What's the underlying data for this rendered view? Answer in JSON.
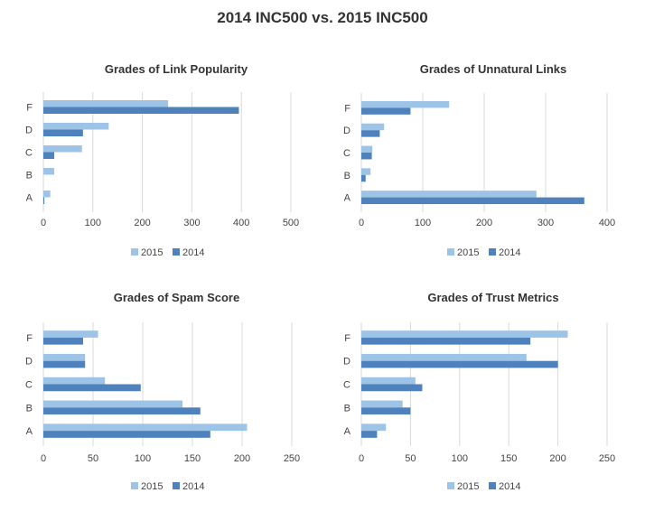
{
  "page": {
    "title": "2014 INC500 vs. 2015 INC500"
  },
  "colors": {
    "s2015": "#9DC3E6",
    "s2014": "#4F81BD",
    "grid": "#D9D9D9",
    "text": "#444444"
  },
  "chart_data": [
    {
      "type": "bar",
      "orientation": "horizontal",
      "title": "Grades of Link Popularity",
      "categories": [
        "A",
        "B",
        "C",
        "D",
        "F"
      ],
      "xlim": [
        0,
        500
      ],
      "xticks": [
        0,
        100,
        200,
        300,
        400,
        500
      ],
      "series": [
        {
          "name": "2015",
          "values": [
            14,
            22,
            78,
            132,
            252
          ]
        },
        {
          "name": "2014",
          "values": [
            2,
            0,
            22,
            80,
            395
          ]
        }
      ],
      "legend": "bottom",
      "grid": true
    },
    {
      "type": "bar",
      "orientation": "horizontal",
      "title": "Grades of Unnatural Links",
      "categories": [
        "A",
        "B",
        "C",
        "D",
        "F"
      ],
      "xlim": [
        0,
        400
      ],
      "xticks": [
        0,
        100,
        200,
        300,
        400
      ],
      "series": [
        {
          "name": "2015",
          "values": [
            285,
            15,
            18,
            37,
            143
          ]
        },
        {
          "name": "2014",
          "values": [
            363,
            7,
            17,
            30,
            80
          ]
        }
      ],
      "legend": "bottom",
      "grid": true
    },
    {
      "type": "bar",
      "orientation": "horizontal",
      "title": "Grades of Spam Score",
      "categories": [
        "A",
        "B",
        "C",
        "D",
        "F"
      ],
      "xlim": [
        0,
        250
      ],
      "xticks": [
        0,
        50,
        100,
        150,
        200,
        250
      ],
      "series": [
        {
          "name": "2015",
          "values": [
            205,
            140,
            62,
            42,
            55
          ]
        },
        {
          "name": "2014",
          "values": [
            168,
            158,
            98,
            42,
            40
          ]
        }
      ],
      "legend": "bottom",
      "grid": true
    },
    {
      "type": "bar",
      "orientation": "horizontal",
      "title": "Grades of Trust Metrics",
      "categories": [
        "A",
        "B",
        "C",
        "D",
        "F"
      ],
      "xlim": [
        0,
        250
      ],
      "xticks": [
        0,
        50,
        100,
        150,
        200,
        250
      ],
      "series": [
        {
          "name": "2015",
          "values": [
            25,
            42,
            55,
            168,
            210
          ]
        },
        {
          "name": "2014",
          "values": [
            16,
            50,
            62,
            200,
            172
          ]
        }
      ],
      "legend": "bottom",
      "grid": true
    }
  ]
}
